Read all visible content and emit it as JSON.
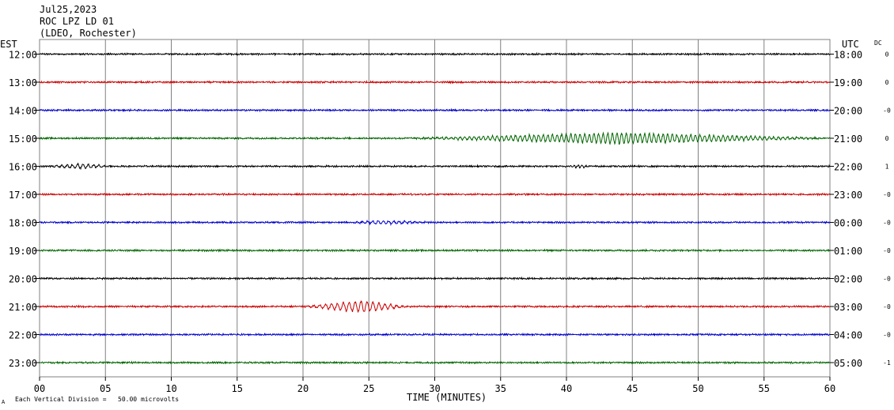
{
  "header": {
    "date": "Jul25,2023",
    "station": "ROC LPZ LD 01",
    "network": "(LDEO, Rochester)"
  },
  "left_axis_label": "EST",
  "right_axis_label": "UTC",
  "dc_label": "DC",
  "footer": {
    "scale_note": "Each Vertical Division =   50.00 microvolts",
    "marker": "A"
  },
  "colors": {
    "background": "#ffffff",
    "grid": "#808080",
    "trace_cycle": [
      "#000000",
      "#cc0000",
      "#0000cc",
      "#006600"
    ]
  },
  "chart_data": {
    "type": "line",
    "title": "ROC LPZ LD 01",
    "xlabel": "TIME (MINUTES)",
    "ylabel": "",
    "xlim": [
      0,
      60
    ],
    "x_ticks": [
      "00",
      "05",
      "10",
      "15",
      "20",
      "25",
      "30",
      "35",
      "40",
      "45",
      "50",
      "55",
      "60"
    ],
    "grid": true,
    "rows": [
      {
        "est": "12:00",
        "utc": "18:00",
        "dc": "0",
        "events": []
      },
      {
        "est": "13:00",
        "utc": "19:00",
        "dc": "0",
        "events": []
      },
      {
        "est": "14:00",
        "utc": "20:00",
        "dc": "-0",
        "events": []
      },
      {
        "est": "15:00",
        "utc": "21:00",
        "dc": "0",
        "events": [
          {
            "start": 28,
            "peak": 44,
            "end": 60,
            "amp": 7.5,
            "period": 0.35
          }
        ]
      },
      {
        "est": "16:00",
        "utc": "22:00",
        "dc": "1",
        "events": [
          {
            "start": 0.5,
            "peak": 3,
            "end": 6,
            "amp": 3,
            "period": 0.4
          },
          {
            "start": 40,
            "peak": 41,
            "end": 42,
            "amp": 2,
            "period": 0.3
          }
        ]
      },
      {
        "est": "17:00",
        "utc": "23:00",
        "dc": "-0",
        "events": []
      },
      {
        "est": "18:00",
        "utc": "00:00",
        "dc": "-0",
        "events": [
          {
            "start": 23.5,
            "peak": 26,
            "end": 30,
            "amp": 2.5,
            "period": 0.4
          }
        ]
      },
      {
        "est": "19:00",
        "utc": "01:00",
        "dc": "-0",
        "events": []
      },
      {
        "est": "20:00",
        "utc": "02:00",
        "dc": "-0",
        "events": []
      },
      {
        "est": "21:00",
        "utc": "03:00",
        "dc": "-0",
        "events": [
          {
            "start": 20,
            "peak": 24.5,
            "end": 28,
            "amp": 8,
            "period": 0.45
          }
        ]
      },
      {
        "est": "22:00",
        "utc": "04:00",
        "dc": "-0",
        "events": []
      },
      {
        "est": "23:00",
        "utc": "05:00",
        "dc": "-1",
        "events": []
      }
    ]
  }
}
